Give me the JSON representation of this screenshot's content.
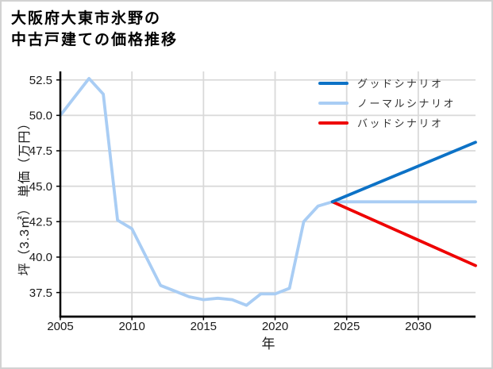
{
  "frame": {
    "background": "#ffffff",
    "border_color": "#d2d2d2"
  },
  "title": {
    "line1": "大阪府大東市氷野の",
    "line2": "中古戸建ての価格推移"
  },
  "chart_data": {
    "type": "line",
    "title": "大阪府大東市氷野の中古戸建ての価格推移",
    "xlabel": "年",
    "ylabel": "坪（3.3㎡） 単価（万円）",
    "xlim": [
      2005,
      2034
    ],
    "ylim": [
      35.8,
      53.1
    ],
    "xticks": [
      2005,
      2010,
      2015,
      2020,
      2025,
      2030
    ],
    "yticks": [
      37.5,
      40.0,
      42.5,
      45.0,
      47.5,
      50.0,
      52.5
    ],
    "grid": true,
    "grid_color": "#d9d9d9",
    "axis_color": "#000000",
    "legend_position": "upper right",
    "legend": [
      {
        "label": "グッドシナリオ",
        "color": "#0d72c6"
      },
      {
        "label": "ノーマルシナリオ",
        "color": "#a9cdf4"
      },
      {
        "label": "バッドシナリオ",
        "color": "#ee0000"
      }
    ],
    "series": [
      {
        "name": "historical-price",
        "color": "#a9cdf4",
        "x": [
          2005,
          2006,
          2007,
          2008,
          2009,
          2010,
          2011,
          2012,
          2013,
          2014,
          2015,
          2016,
          2017,
          2018,
          2019,
          2020,
          2021,
          2022,
          2023,
          2024
        ],
        "y": [
          50.0,
          51.3,
          52.6,
          51.5,
          42.6,
          42.0,
          40.0,
          38.0,
          37.6,
          37.2,
          37.0,
          37.1,
          37.0,
          36.6,
          37.4,
          37.4,
          37.8,
          42.5,
          43.6,
          43.9
        ]
      },
      {
        "name": "ノーマルシナリオ",
        "color": "#a9cdf4",
        "x": [
          2024,
          2034
        ],
        "y": [
          43.9,
          43.9
        ]
      },
      {
        "name": "バッドシナリオ",
        "color": "#ee0000",
        "x": [
          2024,
          2034
        ],
        "y": [
          43.9,
          39.4
        ]
      },
      {
        "name": "グッドシナリオ",
        "color": "#0d72c6",
        "x": [
          2024,
          2034
        ],
        "y": [
          43.9,
          48.1
        ]
      }
    ]
  }
}
